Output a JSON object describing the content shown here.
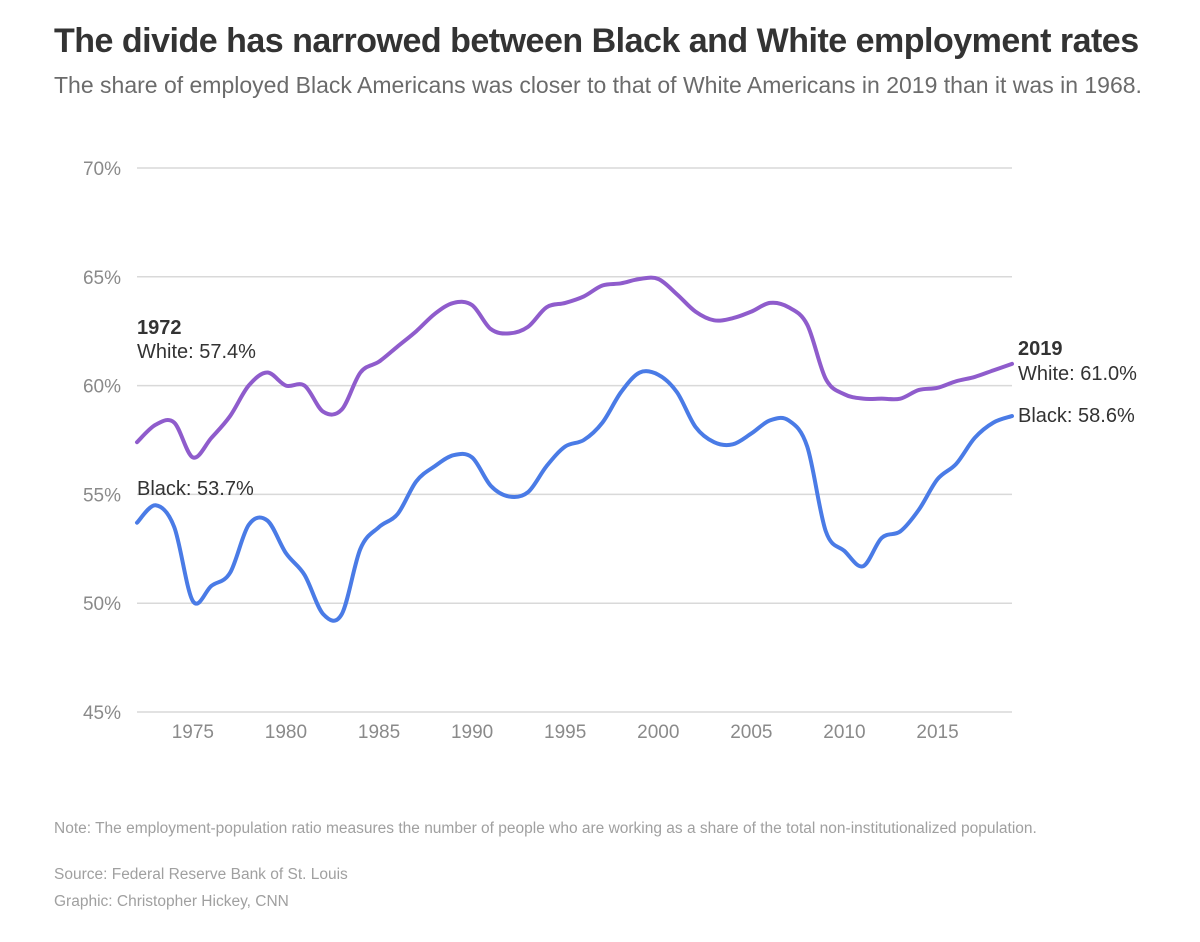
{
  "chart_data": {
    "type": "line",
    "title": "The divide has narrowed between Black and White employment rates",
    "subtitle": "The share of employed Black Americans was closer to that of White Americans in 2019 than it was in 1968.",
    "xlabel": "",
    "ylabel": "",
    "xlim": [
      1972,
      2019
    ],
    "ylim": [
      45,
      70
    ],
    "x_ticks": [
      1975,
      1980,
      1985,
      1990,
      1995,
      2000,
      2005,
      2010,
      2015
    ],
    "x_tick_labels": [
      "1975",
      "1980",
      "1985",
      "1990",
      "1995",
      "2000",
      "2005",
      "2010",
      "2015"
    ],
    "y_ticks": [
      45,
      50,
      55,
      60,
      65,
      70
    ],
    "y_tick_labels": [
      "45%",
      "50%",
      "55%",
      "60%",
      "65%",
      "70%"
    ],
    "grid": true,
    "legend": "none",
    "x": [
      1972,
      1973,
      1974,
      1975,
      1976,
      1977,
      1978,
      1979,
      1980,
      1981,
      1982,
      1983,
      1984,
      1985,
      1986,
      1987,
      1988,
      1989,
      1990,
      1991,
      1992,
      1993,
      1994,
      1995,
      1996,
      1997,
      1998,
      1999,
      2000,
      2001,
      2002,
      2003,
      2004,
      2005,
      2006,
      2007,
      2008,
      2009,
      2010,
      2011,
      2012,
      2013,
      2014,
      2015,
      2016,
      2017,
      2018,
      2019
    ],
    "series": [
      {
        "key": "white",
        "color": "#8f5ccc",
        "values": [
          57.4,
          58.2,
          58.3,
          56.7,
          57.6,
          58.6,
          60.0,
          60.6,
          60.0,
          60.0,
          58.8,
          58.9,
          60.6,
          61.1,
          61.8,
          62.5,
          63.3,
          63.8,
          63.7,
          62.6,
          62.4,
          62.7,
          63.6,
          63.8,
          64.1,
          64.6,
          64.7,
          64.9,
          64.9,
          64.2,
          63.4,
          63.0,
          63.1,
          63.4,
          63.8,
          63.6,
          62.8,
          60.3,
          59.6,
          59.4,
          59.4,
          59.4,
          59.8,
          59.9,
          60.2,
          60.4,
          60.7,
          61.0
        ]
      },
      {
        "key": "black",
        "color": "#4a7be6",
        "values": [
          53.7,
          54.5,
          53.5,
          50.1,
          50.8,
          51.4,
          53.6,
          53.8,
          52.3,
          51.3,
          49.5,
          49.5,
          52.5,
          53.5,
          54.1,
          55.6,
          56.3,
          56.8,
          56.7,
          55.4,
          54.9,
          55.1,
          56.3,
          57.2,
          57.5,
          58.3,
          59.7,
          60.6,
          60.5,
          59.7,
          58.1,
          57.4,
          57.3,
          57.8,
          58.4,
          58.4,
          57.2,
          53.3,
          52.4,
          51.7,
          53.0,
          53.3,
          54.3,
          55.7,
          56.4,
          57.6,
          58.3,
          58.6
        ]
      }
    ],
    "annotations": {
      "start_year": "1972",
      "start_white": "White: 57.4%",
      "start_black": "Black: 53.7%",
      "end_year": "2019",
      "end_white": "White: 61.0%",
      "end_black": "Black: 58.6%"
    },
    "gridline_color": "#d9d9d9"
  },
  "footer": {
    "note": "Note: The employment-population ratio measures the number of people who are working as a share of the total non-institutionalized population.",
    "source": "Source: Federal Reserve Bank of St. Louis",
    "credit": "Graphic: Christopher Hickey, CNN"
  }
}
